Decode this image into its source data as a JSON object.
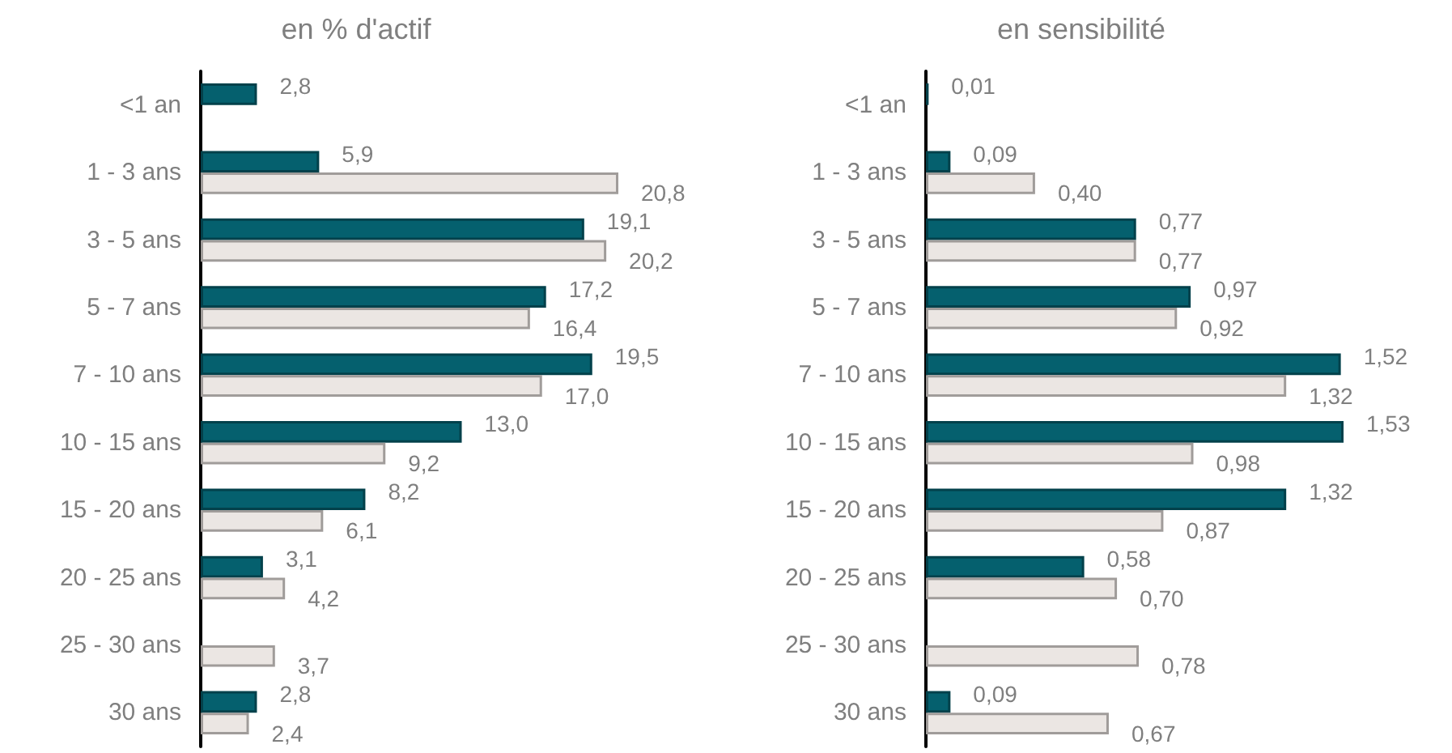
{
  "chart_data": [
    {
      "type": "bar",
      "title": "en % d'actif",
      "orientation": "horizontal",
      "tick_labels": "y",
      "categories": [
        "<1 an",
        "1 - 3 ans",
        "3 - 5 ans",
        "5 - 7 ans",
        "7 - 10 ans",
        "10 - 15 ans",
        "15 - 20 ans",
        "20 - 25 ans",
        "25 - 30 ans",
        "30 ans"
      ],
      "series": [
        {
          "color": "#05606e",
          "values": [
            2.8,
            5.9,
            19.1,
            17.2,
            19.5,
            13.0,
            8.2,
            3.1,
            null,
            2.8
          ],
          "value_labels": [
            "2,8",
            "5,9",
            "19,1",
            "17,2",
            "19,5",
            "13,0",
            "8,2",
            "3,1",
            null,
            "2,8"
          ]
        },
        {
          "color": "#ebe6e3",
          "values": [
            null,
            20.8,
            20.2,
            16.4,
            17.0,
            9.2,
            6.1,
            4.2,
            3.7,
            2.4
          ],
          "value_labels": [
            null,
            "20,8",
            "20,2",
            "16,4",
            "17,0",
            "9,2",
            "6,1",
            "4,2",
            "3,7",
            "2,4"
          ]
        }
      ]
    },
    {
      "type": "bar",
      "title": "en sensibilité",
      "orientation": "horizontal",
      "tick_labels": "y",
      "categories": [
        "<1 an",
        "1 - 3 ans",
        "3 - 5 ans",
        "5 - 7 ans",
        "7 - 10 ans",
        "10 - 15 ans",
        "15 - 20 ans",
        "20 - 25 ans",
        "25 - 30 ans",
        "30 ans"
      ],
      "series": [
        {
          "color": "#05606e",
          "values": [
            0.01,
            0.09,
            0.77,
            0.97,
            1.52,
            1.53,
            1.32,
            0.58,
            null,
            0.09
          ],
          "value_labels": [
            "0,01",
            "0,09",
            "0,77",
            "0,97",
            "1,52",
            "1,53",
            "1,32",
            "0,58",
            null,
            "0,09"
          ]
        },
        {
          "color": "#ebe6e3",
          "values": [
            null,
            0.4,
            0.77,
            0.92,
            1.32,
            0.98,
            0.87,
            0.7,
            0.78,
            0.67
          ],
          "value_labels": [
            null,
            "0,40",
            "0,77",
            "0,92",
            "1,32",
            "0,98",
            "0,87",
            "0,70",
            "0,78",
            "0,67"
          ]
        }
      ]
    }
  ]
}
